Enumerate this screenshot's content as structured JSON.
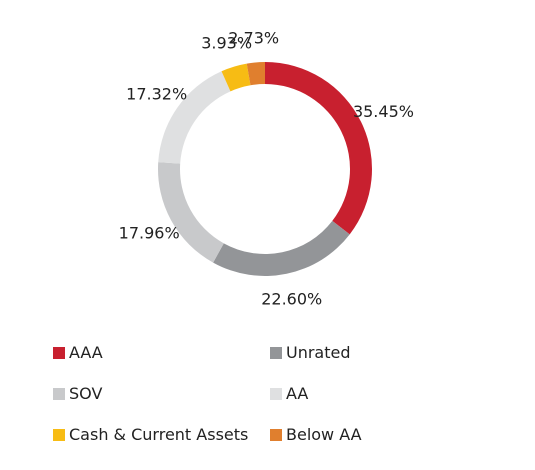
{
  "chart_data": {
    "type": "pie",
    "donut": true,
    "categories": [
      "AAA",
      "Unrated",
      "SOV",
      "AA",
      "Cash & Current Assets",
      "Below AA"
    ],
    "values": [
      35.45,
      22.6,
      17.96,
      17.32,
      3.93,
      2.73
    ],
    "labels": [
      "35.45%",
      "22.60%",
      "17.96%",
      "17.32%",
      "3.93%",
      "2.73%"
    ],
    "colors": [
      "#c8202f",
      "#939598",
      "#c8c9cb",
      "#dfe0e1",
      "#f7bc14",
      "#e07f2e"
    ],
    "legend_position": "bottom",
    "unit": "%"
  },
  "legend": {
    "items": [
      {
        "label": "AAA",
        "color": "#c8202f"
      },
      {
        "label": "Unrated",
        "color": "#939598"
      },
      {
        "label": "SOV",
        "color": "#c8c9cb"
      },
      {
        "label": "AA",
        "color": "#dfe0e1"
      },
      {
        "label": "Cash & Current Assets",
        "color": "#f7bc14"
      },
      {
        "label": "Below AA",
        "color": "#e07f2e"
      }
    ]
  }
}
